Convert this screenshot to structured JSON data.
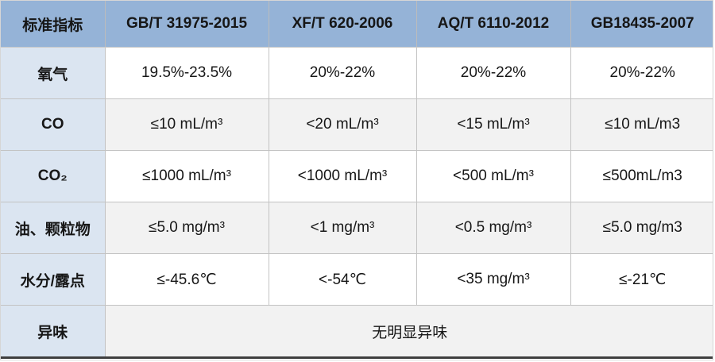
{
  "colors": {
    "header_bg": "#95B3D7",
    "label_column_bg": "#DBE5F1",
    "alt_row_bg": "#F2F2F2",
    "row_bg": "#FFFFFF",
    "inner_border": "#C3C3C3",
    "bottom_border": "#3F3F3F",
    "text": "#171717"
  },
  "table": {
    "header": [
      "标准指标",
      "GB/T 31975-2015",
      "XF/T 620-2006",
      "AQ/T 6110-2012",
      "GB18435-2007"
    ],
    "rows": [
      {
        "label": "氧气",
        "values": [
          "19.5%-23.5%",
          "20%-22%",
          "20%-22%",
          "20%-22%"
        ]
      },
      {
        "label": "CO",
        "values": [
          "≤10 mL/m³",
          "<20 mL/m³",
          "<15 mL/m³",
          "≤10 mL/m3"
        ]
      },
      {
        "label": "CO₂",
        "values": [
          "≤1000 mL/m³",
          "<1000 mL/m³",
          "<500 mL/m³",
          "≤500mL/m3"
        ]
      },
      {
        "label": "油、颗粒物",
        "values": [
          "≤5.0 mg/m³",
          "<1 mg/m³",
          "<0.5 mg/m³",
          "≤5.0 mg/m3"
        ]
      },
      {
        "label": "水分/露点",
        "values": [
          "≤-45.6℃",
          "<-54℃",
          "<35 mg/m³",
          "≤-21℃"
        ]
      },
      {
        "label": "异味",
        "values": [
          "无明显异味"
        ],
        "merged": true
      }
    ]
  },
  "chart_data": {
    "type": "table",
    "columns": [
      "标准指标",
      "GB/T 31975-2015",
      "XF/T 620-2006",
      "AQ/T 6110-2012",
      "GB18435-2007"
    ],
    "rows": [
      [
        "氧气",
        "19.5%-23.5%",
        "20%-22%",
        "20%-22%",
        "20%-22%"
      ],
      [
        "CO",
        "≤10 mL/m³",
        "<20 mL/m³",
        "<15 mL/m³",
        "≤10 mL/m3"
      ],
      [
        "CO₂",
        "≤1000 mL/m³",
        "<1000 mL/m³",
        "<500 mL/m³",
        "≤500mL/m3"
      ],
      [
        "油、颗粒物",
        "≤5.0 mg/m³",
        "<1 mg/m³",
        "<0.5 mg/m³",
        "≤5.0 mg/m3"
      ],
      [
        "水分/露点",
        "≤-45.6℃",
        "<-54℃",
        "<35 mg/m³",
        "≤-21℃"
      ],
      [
        "异味",
        "无明显异味",
        "无明显异味",
        "无明显异味",
        "无明显异味"
      ]
    ],
    "layout_hints": {
      "last_row_merged_across_value_columns": true,
      "header_style": "blue fill, bold",
      "zebra_striping": "white / light gray alternating data rows"
    }
  }
}
